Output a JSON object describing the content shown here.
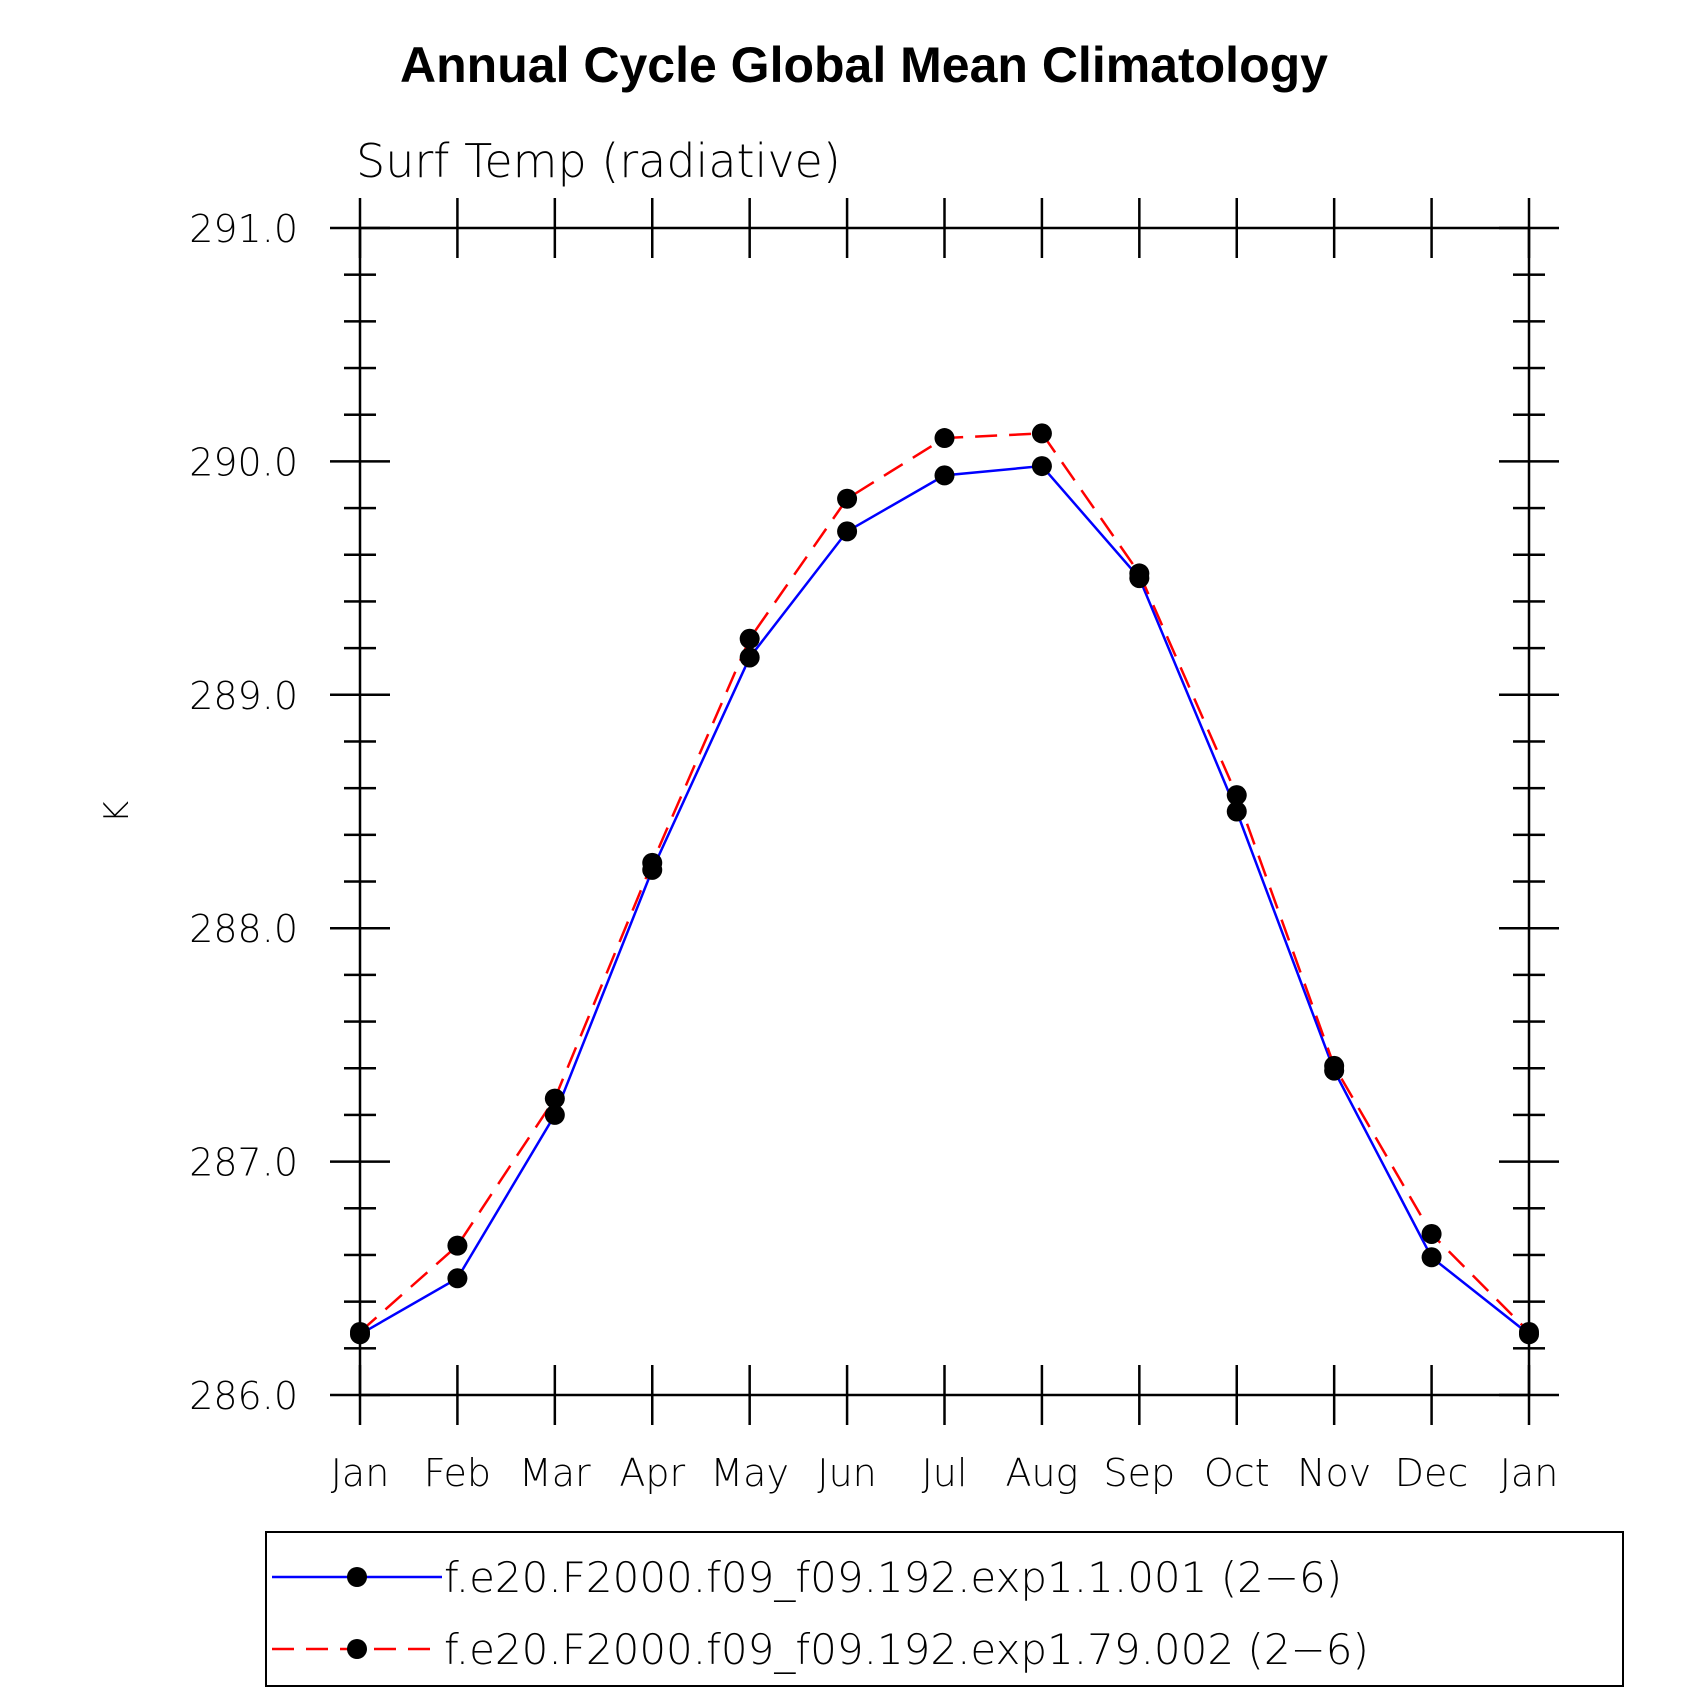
{
  "chart_data": {
    "type": "line",
    "title": "Annual Cycle Global Mean Climatology",
    "subtitle": "Surf Temp (radiative)",
    "xlabel": "",
    "ylabel": "K",
    "ylim": [
      286.0,
      291.0
    ],
    "y_tick_labels": [
      "286.0",
      "287.0",
      "288.0",
      "289.0",
      "290.0",
      "291.0"
    ],
    "categories": [
      "Jan",
      "Feb",
      "Mar",
      "Apr",
      "May",
      "Jun",
      "Jul",
      "Aug",
      "Sep",
      "Oct",
      "Nov",
      "Dec",
      "Jan"
    ],
    "grid": false,
    "legend_position": "bottom",
    "series": [
      {
        "name": "f.e20.F2000.f09_f09.192.exp1.1.001 (2−6)",
        "color": "#0000ff",
        "line_style": "solid",
        "values": [
          286.26,
          286.5,
          287.2,
          288.25,
          289.16,
          289.7,
          289.94,
          289.98,
          289.5,
          288.5,
          287.39,
          286.59,
          286.26
        ]
      },
      {
        "name": "f.e20.F2000.f09_f09.192.exp1.79.002 (2−6)",
        "color": "#ff0000",
        "line_style": "dashed",
        "values": [
          286.27,
          286.64,
          287.27,
          288.28,
          289.24,
          289.84,
          290.1,
          290.12,
          289.52,
          288.57,
          287.41,
          286.69,
          286.27
        ]
      }
    ]
  }
}
